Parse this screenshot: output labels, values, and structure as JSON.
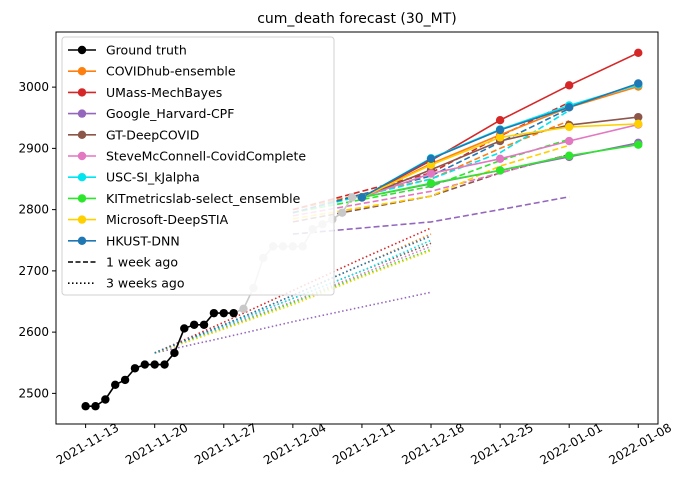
{
  "chart_data": {
    "type": "line",
    "title": "cum_death forecast (30_MT)",
    "xlabel": "",
    "ylabel": "",
    "x_ticks": [
      "2021-11-13",
      "2021-11-20",
      "2021-11-27",
      "2021-12-04",
      "2021-12-11",
      "2021-12-18",
      "2021-12-25",
      "2022-01-01",
      "2022-01-08"
    ],
    "y_ticks": [
      2500,
      2600,
      2700,
      2800,
      2900,
      3000
    ],
    "xlim": [
      "2021-11-10",
      "2022-01-10"
    ],
    "ylim": [
      2450,
      3090
    ],
    "legend_position": "top-left",
    "legend_entries": [
      "Ground truth",
      "COVIDhub-ensemble",
      "UMass-MechBayes",
      "Google_Harvard-CPF",
      "GT-DeepCOVID",
      "SteveMcConnell-CovidComplete",
      "USC-SI_kJalpha",
      "KITmetricslab-select_ensemble",
      "Microsoft-DeepSTIA",
      "HKUST-DNN",
      "1 week ago",
      "3 weeks ago"
    ],
    "ground_truth": {
      "name": "Ground truth",
      "color": "#000000",
      "x": [
        "2021-11-13",
        "2021-11-14",
        "2021-11-15",
        "2021-11-16",
        "2021-11-17",
        "2021-11-18",
        "2021-11-19",
        "2021-11-20",
        "2021-11-21",
        "2021-11-22",
        "2021-11-23",
        "2021-11-24",
        "2021-11-25",
        "2021-11-26",
        "2021-11-27",
        "2021-11-28",
        "2021-11-29",
        "2021-11-30",
        "2021-12-01",
        "2021-12-02",
        "2021-12-03",
        "2021-12-04",
        "2021-12-05",
        "2021-12-06",
        "2021-12-07",
        "2021-12-08",
        "2021-12-09",
        "2021-12-10",
        "2021-12-11"
      ],
      "y": [
        2479,
        2479,
        2490,
        2514,
        2522,
        2541,
        2547,
        2547,
        2547,
        2566,
        2606,
        2612,
        2612,
        2631,
        2631,
        2631,
        2638,
        2672,
        2721,
        2740,
        2740,
        2740,
        2740,
        2768,
        2776,
        2784,
        2795,
        2820,
        2820
      ],
      "gray_from": "2021-11-28"
    },
    "series": [
      {
        "name": "COVIDhub-ensemble",
        "color": "#ff7f0e",
        "current": [
          2820,
          2875,
          2922,
          2967,
          3001
        ],
        "week1": [
          2800,
          2850,
          2900,
          2945
        ],
        "week3": [
          2566,
          2612,
          2660,
          2710,
          2760
        ]
      },
      {
        "name": "UMass-MechBayes",
        "color": "#d62728",
        "current": [
          2820,
          2880,
          2946,
          3003,
          3056
        ],
        "week1": [
          2800,
          2860,
          2920,
          2975
        ],
        "week3": [
          2566,
          2616,
          2668,
          2720,
          2770
        ]
      },
      {
        "name": "Google_Harvard-CPF",
        "color": "#9467bd",
        "current": [
          2820,
          2842,
          2864,
          2886,
          2909
        ],
        "week1": [
          2760,
          2780,
          2800,
          2821
        ],
        "week3": [
          2566,
          2591,
          2617,
          2641,
          2665
        ]
      },
      {
        "name": "GT-DeepCOVID",
        "color": "#8c564b",
        "current": [
          2820,
          2865,
          2912,
          2938,
          2951
        ],
        "week1": [
          2780,
          2822,
          2860,
          2890
        ],
        "week3": [
          2566,
          2610,
          2655,
          2700,
          2745
        ]
      },
      {
        "name": "SteveMcConnell-CovidComplete",
        "color": "#e377c2",
        "current": [
          2820,
          2859,
          2883,
          2912,
          2939
        ],
        "week1": [
          2790,
          2830,
          2860,
          2890
        ],
        "week3": [
          2566,
          2608,
          2650,
          2695,
          2740
        ]
      },
      {
        "name": "USC-SI_kJalpha",
        "color": "#00e5ee",
        "current": [
          2820,
          2884,
          2931,
          2970,
          3004
        ],
        "week1": [
          2795,
          2850,
          2893,
          2962
        ],
        "week3": [
          2566,
          2610,
          2655,
          2700,
          2750
        ]
      },
      {
        "name": "KITmetricslab-select_ensemble",
        "color": "#2ce62c",
        "current": [
          2820,
          2843,
          2864,
          2888,
          2906
        ],
        "week1": [
          2795,
          2838,
          2880,
          2915
        ],
        "week3": [
          2566,
          2606,
          2648,
          2692,
          2735
        ]
      },
      {
        "name": "Microsoft-DeepSTIA",
        "color": "#ffd000",
        "current": [
          2820,
          2873,
          2918,
          2935,
          2940
        ],
        "week1": [
          2785,
          2822,
          2871,
          2905
        ],
        "week3": [
          2566,
          2605,
          2645,
          2690,
          2733
        ]
      },
      {
        "name": "HKUST-DNN",
        "color": "#1f77b4",
        "current": [
          2820,
          2883,
          2930,
          2967,
          3006
        ],
        "week1": [
          2795,
          2855,
          2910,
          2965
        ],
        "week3": [
          2566,
          2612,
          2660,
          2710,
          2757
        ]
      }
    ],
    "current_x": [
      "2021-12-11",
      "2021-12-18",
      "2021-12-25",
      "2022-01-01",
      "2022-01-08"
    ],
    "week1_x": [
      "2021-12-04",
      "2021-12-18",
      "2021-12-25",
      "2022-01-01"
    ],
    "week3_x": [
      "2021-11-20",
      "2021-11-27",
      "2021-12-04",
      "2021-12-11",
      "2021-12-18"
    ],
    "grid": false
  }
}
